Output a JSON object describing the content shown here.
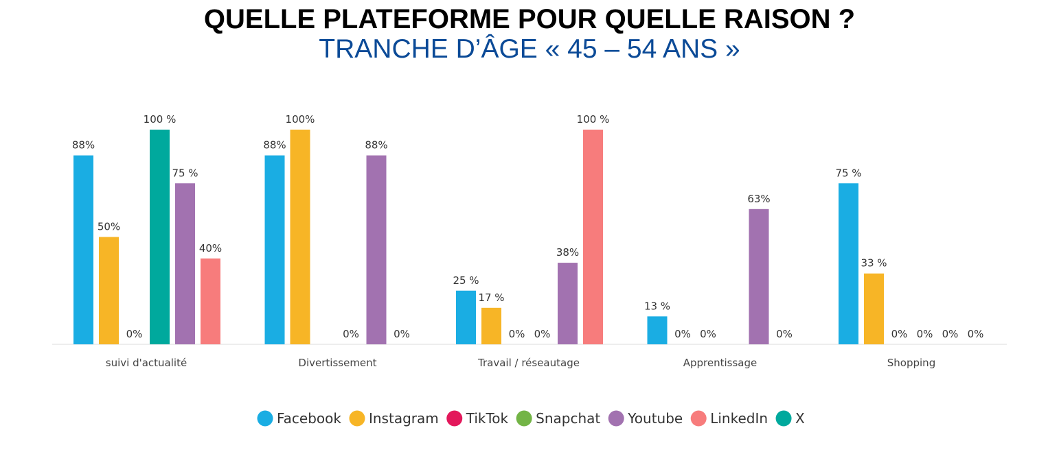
{
  "header": {
    "title": "QUELLE PLATEFORME POUR QUELLE RAISON ?",
    "subtitle": "TRANCHE D’ÂGE « 45 – 54 ANS »"
  },
  "chart_data": {
    "type": "bar",
    "title": "QUELLE PLATEFORME POUR QUELLE RAISON ?",
    "subtitle": "TRANCHE D’ÂGE « 45 – 54 ANS »",
    "xlabel": "",
    "ylabel": "",
    "ylim": [
      0,
      100
    ],
    "grid": false,
    "legend_position": "bottom",
    "categories": [
      "suivi d'actualité",
      "Divertissement",
      "Travail / réseautage",
      "Apprentissage",
      "Shopping"
    ],
    "series": [
      {
        "name": "Facebook",
        "color": "#1aade3",
        "values": [
          88,
          88,
          25,
          13,
          75
        ],
        "labels": [
          "88%",
          "88%",
          "25 %",
          "13 %",
          "75 %"
        ]
      },
      {
        "name": "Instagram",
        "color": "#f7b526",
        "values": [
          50,
          100,
          17,
          0,
          33
        ],
        "labels": [
          "50%",
          "100%",
          "17 %",
          "0%",
          "33 %"
        ]
      },
      {
        "name": "TikTok",
        "color": "#e3185b",
        "values": [
          0,
          0,
          0,
          0,
          0
        ],
        "labels": [
          "0%",
          "",
          "0%",
          "0%",
          "0%"
        ]
      },
      {
        "name": "Snapchat",
        "color": "#73b446",
        "values": [
          null,
          0,
          0,
          0,
          0
        ],
        "labels": [
          "",
          "0%",
          "0%",
          "",
          "0%"
        ]
      },
      {
        "name": "Youtube",
        "color": "#a272b0",
        "values": [
          75,
          88,
          38,
          63,
          0
        ],
        "labels": [
          "75 %",
          "88%",
          "38%",
          "63%",
          "0%"
        ]
      },
      {
        "name": "LinkedIn",
        "color": "#f77c7c",
        "values": [
          40,
          0,
          100,
          0,
          0
        ],
        "labels": [
          "40%",
          "0%",
          "100 %",
          "0%",
          "0%"
        ]
      },
      {
        "name": "X",
        "color": "#00a99d",
        "values": [
          100,
          null,
          null,
          null,
          null
        ],
        "labels": [
          "100 %",
          "",
          "",
          "",
          ""
        ]
      }
    ],
    "bar_order": [
      [
        "Facebook",
        "Instagram",
        "TikTok",
        "X",
        "Youtube",
        "LinkedIn"
      ],
      [
        "Facebook",
        "Instagram",
        "TikTok",
        "Snapchat",
        "Youtube",
        "LinkedIn"
      ],
      [
        "Facebook",
        "Instagram",
        "TikTok",
        "Snapchat",
        "Youtube",
        "LinkedIn"
      ],
      [
        "Facebook",
        "Instagram",
        "TikTok",
        "Snapchat",
        "Youtube",
        "LinkedIn"
      ],
      [
        "Facebook",
        "Instagram",
        "TikTok",
        "Snapchat",
        "Youtube",
        "LinkedIn"
      ]
    ]
  }
}
